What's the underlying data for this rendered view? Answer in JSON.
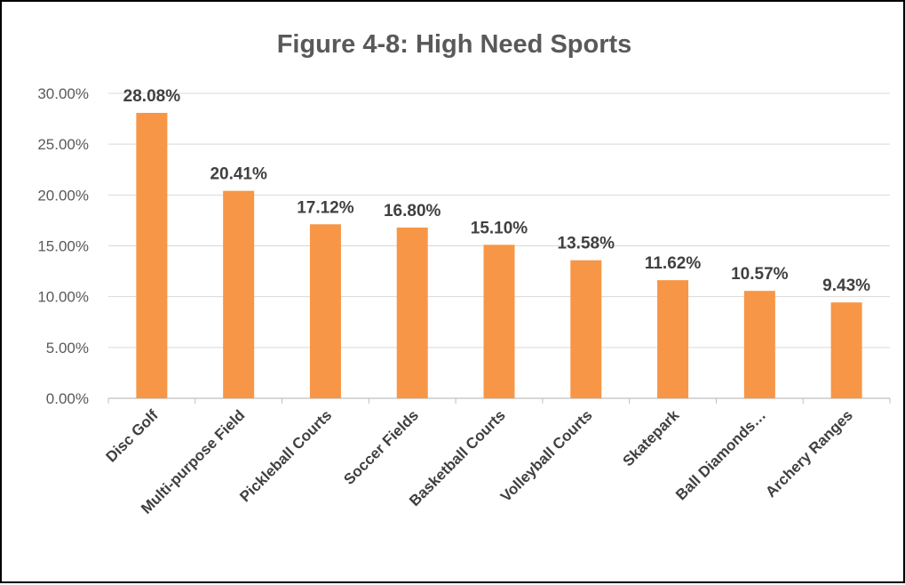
{
  "chart_data": {
    "type": "bar",
    "title": "Figure 4-8: High Need Sports",
    "xlabel": "",
    "ylabel": "",
    "categories": [
      "Disc Golf",
      "Multi-purpose Field",
      "Pickleball Courts",
      "Soccer Fields",
      "Basketball Courts",
      "Volleyball Courts",
      "Skatepark",
      "Ball Diamonds…",
      "Archery Ranges"
    ],
    "values": [
      28.08,
      20.41,
      17.12,
      16.8,
      15.1,
      13.58,
      11.62,
      10.57,
      9.43
    ],
    "data_labels": [
      "28.08%",
      "20.41%",
      "17.12%",
      "16.80%",
      "15.10%",
      "13.58%",
      "11.62%",
      "10.57%",
      "9.43%"
    ],
    "ylim": [
      0,
      30
    ],
    "yticks": [
      0,
      5,
      10,
      15,
      20,
      25,
      30
    ],
    "ytick_labels": [
      "0.00%",
      "5.00%",
      "10.00%",
      "15.00%",
      "20.00%",
      "25.00%",
      "30.00%"
    ],
    "grid": true,
    "legend": "none",
    "colors": {
      "bar": "#F79646",
      "grid": "#D9D9D9",
      "axis": "#BFBFBF",
      "text": "#595959",
      "label": "#404040"
    }
  }
}
